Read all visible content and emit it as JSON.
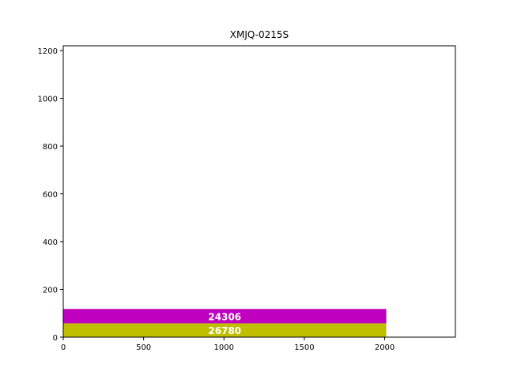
{
  "chart_data": {
    "type": "bar",
    "orientation": "horizontal-stacked",
    "title": "XMJQ-0215S",
    "xlabel": "",
    "ylabel": "",
    "xlim": [
      0,
      2440
    ],
    "ylim": [
      0,
      1220
    ],
    "xticks": [
      0,
      500,
      1000,
      1500,
      2000
    ],
    "yticks": [
      0,
      200,
      400,
      600,
      800,
      1000,
      1200
    ],
    "grid": false,
    "series": [
      {
        "label": "26780",
        "color": "#bfbf00",
        "x_start": 0,
        "x_end": 2010,
        "y_start": 0,
        "y_end": 58
      },
      {
        "label": "24306",
        "color": "#bf00bf",
        "x_start": 0,
        "x_end": 2010,
        "y_start": 58,
        "y_end": 118
      }
    ]
  }
}
